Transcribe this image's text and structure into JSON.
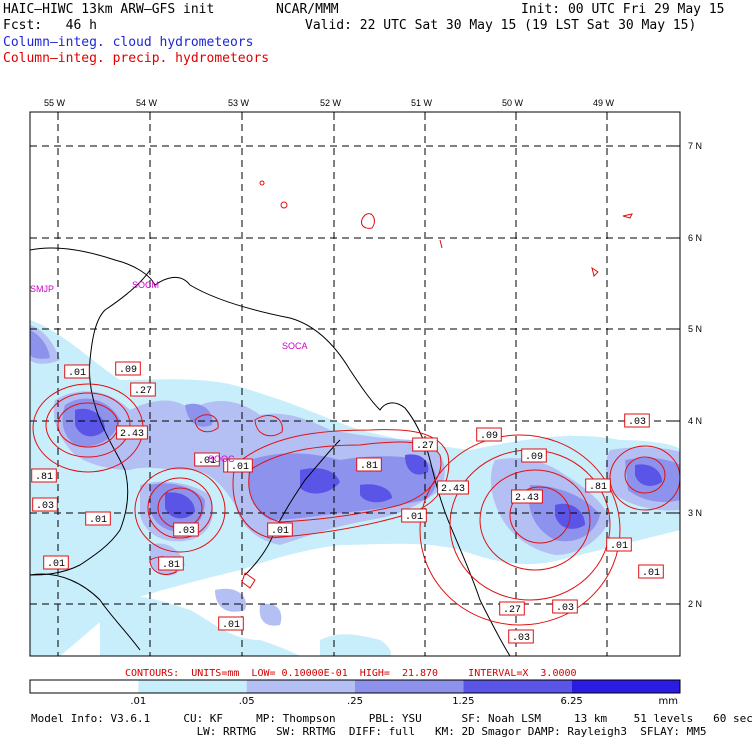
{
  "header": {
    "model": "HAIC–HIWC 13km ARW–GFS init",
    "org": "NCAR/MMM",
    "init": "Init: 00 UTC Fri 29 May 15",
    "fcst": "Fcst:   46 h",
    "valid": "Valid: 22 UTC Sat 30 May 15 (19 LST Sat 30 May 15)",
    "field1": "Column–integ. cloud hydrometeors",
    "field2": "Column–integ. precip. hydrometeors"
  },
  "map": {
    "lon_labels": [
      "55 W",
      "54 W",
      "53 W",
      "52 W",
      "51 W",
      "50 W",
      "49 W"
    ],
    "lat_labels": [
      "7 N",
      "6 N",
      "5 N",
      "4 N",
      "3 N",
      "2 N"
    ],
    "stations": [
      "SMJP",
      "SOCM",
      "SOCA",
      "SOOC"
    ],
    "contour_labels": [
      ".01",
      ".09",
      ".27",
      "2.43",
      ".01",
      ".03",
      ".81",
      ".03",
      ".01",
      ".03",
      ".01",
      ".81",
      ".81",
      ".27",
      ".01",
      ".09",
      ".01",
      ".09",
      "2.43",
      "2.43",
      ".81",
      ".01",
      ".27",
      ".03",
      ".01",
      ".03",
      ".01",
      ".03",
      ".01"
    ]
  },
  "contours_line": "CONTOURS:  UNITS=mm  LOW= 0.10000E-01  HIGH=  21.870     INTERVAL=X  3.0000",
  "colorbar": {
    "ticks": [
      ".01",
      ".05",
      ".25",
      "1.25",
      "6.25"
    ],
    "unit": "mm",
    "colors": [
      "#ffffff",
      "#c8eefb",
      "#b4c0f4",
      "#8d92ec",
      "#5a55e6",
      "#2b1ce3"
    ]
  },
  "footer": {
    "line1": "Model Info: V3.6.1     CU: KF     MP: Thompson     PBL: YSU      SF: Noah LSM     13 km    51 levels   60 sec",
    "line2": "                         LW: RRTMG   SW: RRTMG  DIFF: full   KM: 2D Smagor DAMP: Rayleigh3  SFLAY: MM5"
  }
}
